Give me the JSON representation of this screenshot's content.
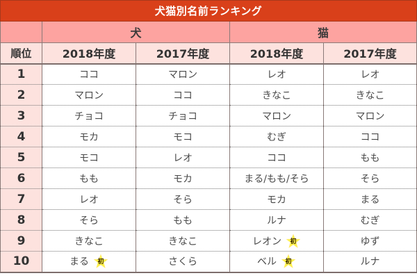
{
  "title": "犬猫別名前ランキング",
  "header": {
    "rank_label": "順位",
    "groups": [
      {
        "label": "犬",
        "years": [
          "2018年度",
          "2017年度"
        ]
      },
      {
        "label": "猫",
        "years": [
          "2018年度",
          "2017年度"
        ]
      }
    ]
  },
  "badge": {
    "label": "初",
    "icon": "star-icon",
    "color": "#fff34a"
  },
  "rows": [
    {
      "rank": "1",
      "dog2018": "ココ",
      "dog2017": "マロン",
      "cat2018": "レオ",
      "cat2017": "レオ"
    },
    {
      "rank": "2",
      "dog2018": "マロン",
      "dog2017": "ココ",
      "cat2018": "きなこ",
      "cat2017": "きなこ"
    },
    {
      "rank": "3",
      "dog2018": "チョコ",
      "dog2017": "チョコ",
      "cat2018": "マロン",
      "cat2017": "マロン"
    },
    {
      "rank": "4",
      "dog2018": "モカ",
      "dog2017": "モコ",
      "cat2018": "むぎ",
      "cat2017": "ココ"
    },
    {
      "rank": "5",
      "dog2018": "モコ",
      "dog2017": "レオ",
      "cat2018": "ココ",
      "cat2017": "もも"
    },
    {
      "rank": "6",
      "dog2018": "もも",
      "dog2017": "モカ",
      "cat2018": "まる/もも/そら",
      "cat2017": "そら"
    },
    {
      "rank": "7",
      "dog2018": "レオ",
      "dog2017": "そら",
      "cat2018": "モカ",
      "cat2017": "まる"
    },
    {
      "rank": "8",
      "dog2018": "そら",
      "dog2017": "もも",
      "cat2018": "ルナ",
      "cat2017": "むぎ"
    },
    {
      "rank": "9",
      "dog2018": "きなこ",
      "dog2017": "きなこ",
      "cat2018": "レオン",
      "cat2017": "ゆず",
      "cat2018_new": true
    },
    {
      "rank": "10",
      "dog2018": "まる",
      "dog2017": "さくら",
      "cat2018": "ベル",
      "cat2017": "ルナ",
      "dog2018_new": true,
      "cat2018_new": true
    }
  ],
  "colors": {
    "title_bg": "#d9401a",
    "group_bg": "#fda3a0",
    "year_bg": "#fde2de",
    "rank_bg": "#fde2de"
  }
}
